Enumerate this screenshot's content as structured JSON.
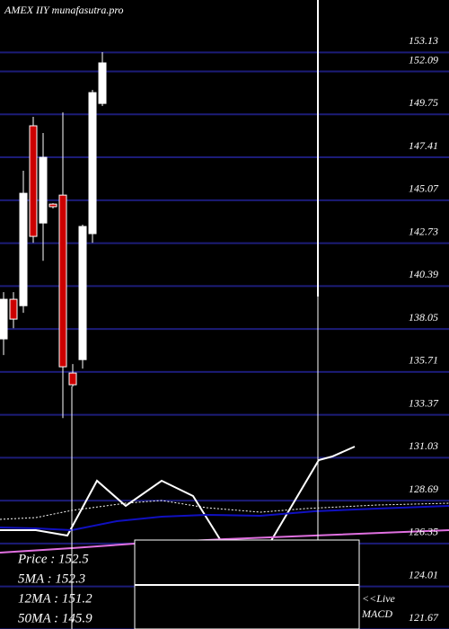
{
  "chart_data": {
    "type": "candlestick",
    "title": "AMEX IIY munafasutra.pro",
    "categories": [
      null,
      null,
      null,
      null,
      null,
      null,
      null,
      null,
      null,
      null,
      null
    ],
    "open": [
      136.92,
      139.08,
      138.73,
      148.54,
      143.24,
      144.27,
      144.76,
      135.06,
      135.79,
      142.66,
      149.76
    ],
    "high": [
      139.47,
      139.47,
      146.09,
      149.03,
      148.15,
      144.32,
      149.27,
      135.55,
      143.15,
      150.5,
      152.56
    ],
    "low": [
      136.04,
      137.5,
      138.34,
      142.16,
      141.18,
      144.03,
      132.6,
      134.32,
      135.3,
      142.16,
      149.62
    ],
    "close": [
      139.08,
      138.0,
      144.86,
      142.51,
      146.82,
      144.13,
      135.4,
      134.42,
      143.05,
      150.35,
      151.97
    ],
    "up_color": "#ffffff",
    "down_color": "#cc0000",
    "grid_color": "#1c1c78",
    "ylim": [
      121.1,
      155.4
    ],
    "yticks": [
      153.13,
      152.09,
      149.75,
      147.41,
      145.07,
      142.73,
      140.39,
      138.05,
      135.71,
      133.37,
      131.03,
      128.69,
      126.35,
      124.01,
      121.67
    ],
    "grid": true,
    "info": [
      "Price  : 152.5",
      "5MA : 152.3",
      "12MA : 151.2",
      "50MA : 145.9"
    ],
    "macd_label": [
      "<<Live",
      "MACD"
    ]
  }
}
